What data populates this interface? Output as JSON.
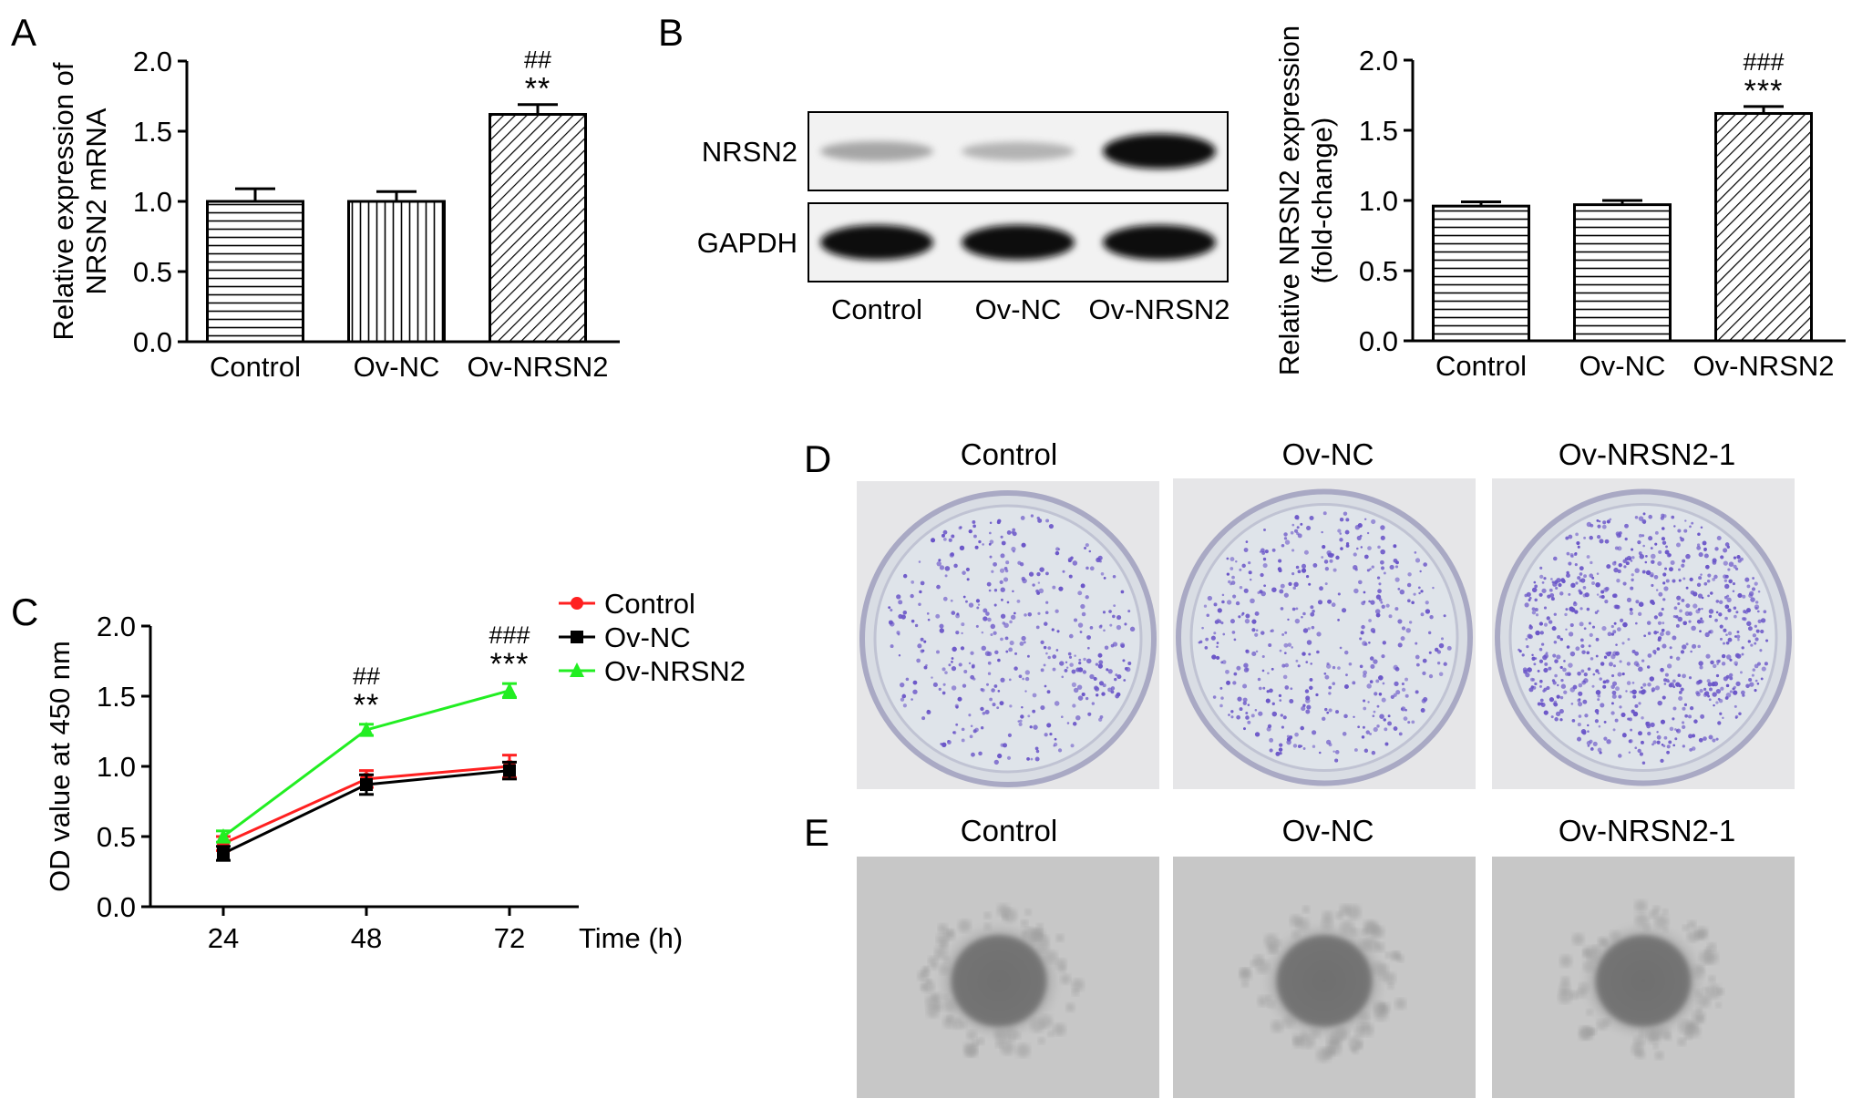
{
  "panels": {
    "A": {
      "letter": "A",
      "chart_data": {
        "type": "bar",
        "categories": [
          "Control",
          "Ov-NC",
          "Ov-NRSN2"
        ],
        "values": [
          1.0,
          1.0,
          1.62
        ],
        "errors": [
          0.09,
          0.07,
          0.07
        ],
        "ylabel": "Relative expression of NRSN2 mRNA",
        "ylabel_lines": [
          "Relative expression of",
          "NRSN2 mRNA"
        ],
        "ylim": [
          0,
          2.0
        ],
        "yticks": [
          "0.0",
          "0.5",
          "1.0",
          "1.5",
          "2.0"
        ],
        "significance": [
          [
            "",
            ""
          ],
          [
            "",
            ""
          ],
          [
            "##",
            "**"
          ]
        ],
        "patterns": [
          "horizontal-stripes",
          "vertical-stripes",
          "diagonal-hatch"
        ]
      }
    },
    "B": {
      "letter": "B",
      "blot": {
        "rows": [
          "NRSN2",
          "GAPDH"
        ],
        "lanes": [
          "Control",
          "Ov-NC",
          "Ov-NRSN2"
        ],
        "nrsn2_intensity": [
          0.35,
          0.3,
          0.95
        ],
        "gapdh_intensity": [
          0.95,
          0.95,
          0.95
        ]
      },
      "chart_data": {
        "type": "bar",
        "categories": [
          "Control",
          "Ov-NC",
          "Ov-NRSN2"
        ],
        "values": [
          0.96,
          0.97,
          1.62
        ],
        "errors": [
          0.03,
          0.03,
          0.05
        ],
        "ylabel": "Relative NRSN2 expression (fold-change)",
        "ylabel_lines": [
          "Relative NRSN2 expression",
          "(fold-change)"
        ],
        "ylim": [
          0,
          2.0
        ],
        "yticks": [
          "0.0",
          "0.5",
          "1.0",
          "1.5",
          "2.0"
        ],
        "significance": [
          [
            "",
            ""
          ],
          [
            "",
            ""
          ],
          [
            "###",
            "***"
          ]
        ],
        "patterns": [
          "horizontal-stripes",
          "horizontal-stripes",
          "diagonal-hatch"
        ]
      }
    },
    "C": {
      "letter": "C",
      "chart_data": {
        "type": "line",
        "x": [
          24,
          48,
          72
        ],
        "xticks": [
          "24",
          "48",
          "72"
        ],
        "xlabel": "Time (h)",
        "ylabel": "OD value at 450 nm",
        "ylim": [
          0,
          2.0
        ],
        "yticks": [
          "0.0",
          "0.5",
          "1.0",
          "1.5",
          "2.0"
        ],
        "series": [
          {
            "name": "Control",
            "color": "#ff2020",
            "marker": "circle",
            "values": [
              0.45,
              0.91,
              1.0
            ],
            "errors": [
              0.05,
              0.06,
              0.08
            ]
          },
          {
            "name": "Ov-NC",
            "color": "#000000",
            "marker": "square",
            "values": [
              0.38,
              0.87,
              0.97
            ],
            "errors": [
              0.05,
              0.07,
              0.06
            ]
          },
          {
            "name": "Ov-NRSN2",
            "color": "#22ee22",
            "marker": "triangle",
            "values": [
              0.5,
              1.26,
              1.54
            ],
            "errors": [
              0.04,
              0.04,
              0.05
            ]
          }
        ],
        "annotations": [
          {
            "x": 48,
            "lines": [
              "##",
              "**"
            ]
          },
          {
            "x": 72,
            "lines": [
              "###",
              "***"
            ]
          }
        ],
        "legend_position": "top-right"
      }
    },
    "D": {
      "letter": "D",
      "captions": [
        "Control",
        "Ov-NC",
        "Ov-NRSN2-1"
      ],
      "dish_color": "#d9dde4",
      "colony_color": "#6a55c8",
      "colony_density": [
        0.45,
        0.5,
        0.85
      ]
    },
    "E": {
      "letter": "E",
      "captions": [
        "Control",
        "Ov-NC",
        "Ov-NRSN2-1"
      ],
      "background": "#c7c7c7"
    }
  }
}
